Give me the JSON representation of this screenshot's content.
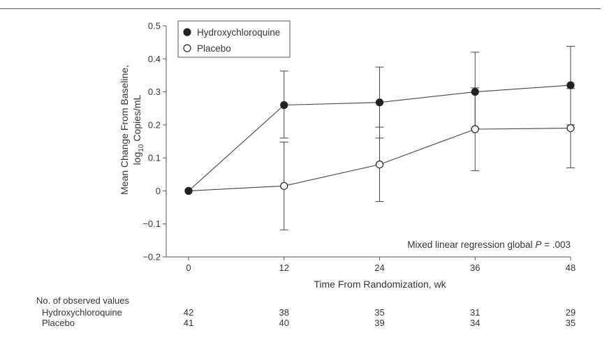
{
  "chart_data": {
    "type": "line",
    "x": [
      0,
      12,
      24,
      36,
      48
    ],
    "x_ticks": [
      "0",
      "12",
      "24",
      "36",
      "48"
    ],
    "xlim": [
      0,
      48
    ],
    "xlabel": "Time From Randomization, wk",
    "ylabel_line1": "Mean Change From Baseline,",
    "ylabel_line2_pre": "log",
    "ylabel_line2_sub": "10",
    "ylabel_line2_post": " Copies/mL",
    "ylim": [
      -0.2,
      0.5
    ],
    "y_ticks": [
      "−0.2",
      "−0.1",
      "0",
      "0.1",
      "0.2",
      "0.3",
      "0.4",
      "0.5"
    ],
    "y_tick_values": [
      -0.2,
      -0.1,
      0,
      0.1,
      0.2,
      0.3,
      0.4,
      0.5
    ],
    "grid": false,
    "legend_position": "top-left",
    "series": [
      {
        "name": "Hydroxychloroquine",
        "marker": "filled-circle",
        "values": [
          0,
          0.26,
          0.268,
          0.3,
          0.32
        ],
        "ci_lower": [
          0,
          0.16,
          0.16,
          0.19,
          0.2
        ],
        "ci_upper": [
          0,
          0.363,
          0.375,
          0.42,
          0.438
        ]
      },
      {
        "name": "Placebo",
        "marker": "open-circle",
        "values": [
          0,
          0.015,
          0.08,
          0.187,
          0.19
        ],
        "ci_lower": [
          0,
          -0.118,
          -0.032,
          0.061,
          0.07
        ],
        "ci_upper": [
          0,
          0.148,
          0.193,
          0.312,
          0.31
        ]
      }
    ],
    "annotation": {
      "text_pre": "Mixed linear regression global ",
      "text_p": "P",
      "text_post": " = .003"
    }
  },
  "observed_counts": {
    "title": "No. of observed values",
    "rows": [
      {
        "label": "Hydroxychloroquine",
        "values": [
          "42",
          "38",
          "35",
          "31",
          "29"
        ]
      },
      {
        "label": "Placebo",
        "values": [
          "41",
          "40",
          "39",
          "34",
          "35"
        ]
      }
    ]
  },
  "colors": {
    "ink": "#333333",
    "axis": "#555555",
    "marker_fill": "#222222"
  }
}
